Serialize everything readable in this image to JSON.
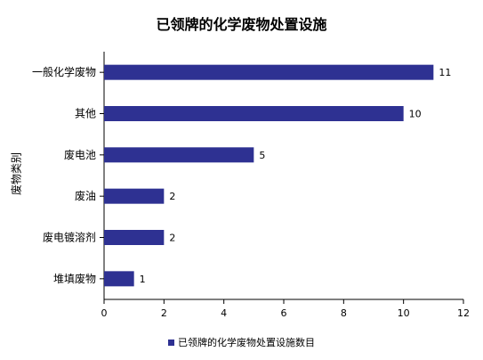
{
  "colors": {
    "bar": "#2e3192",
    "axis": "#000000",
    "text": "#000000"
  },
  "chart_data": {
    "type": "bar",
    "orientation": "horizontal",
    "title": "已领牌的化学废物处置设施",
    "xlabel": "",
    "ylabel": "废物类别",
    "categories": [
      "一般化学废物",
      "其他",
      "废电池",
      "废油",
      "废电镀溶剂",
      "堆填废物"
    ],
    "series": [
      {
        "name": "已领牌的化学废物处置设施数目",
        "values": [
          11,
          10,
          5,
          2,
          2,
          1
        ]
      }
    ],
    "xlim": [
      0,
      12
    ],
    "xticks": [
      0,
      2,
      4,
      6,
      8,
      10,
      12
    ],
    "grid": false,
    "legend": "bottom"
  }
}
